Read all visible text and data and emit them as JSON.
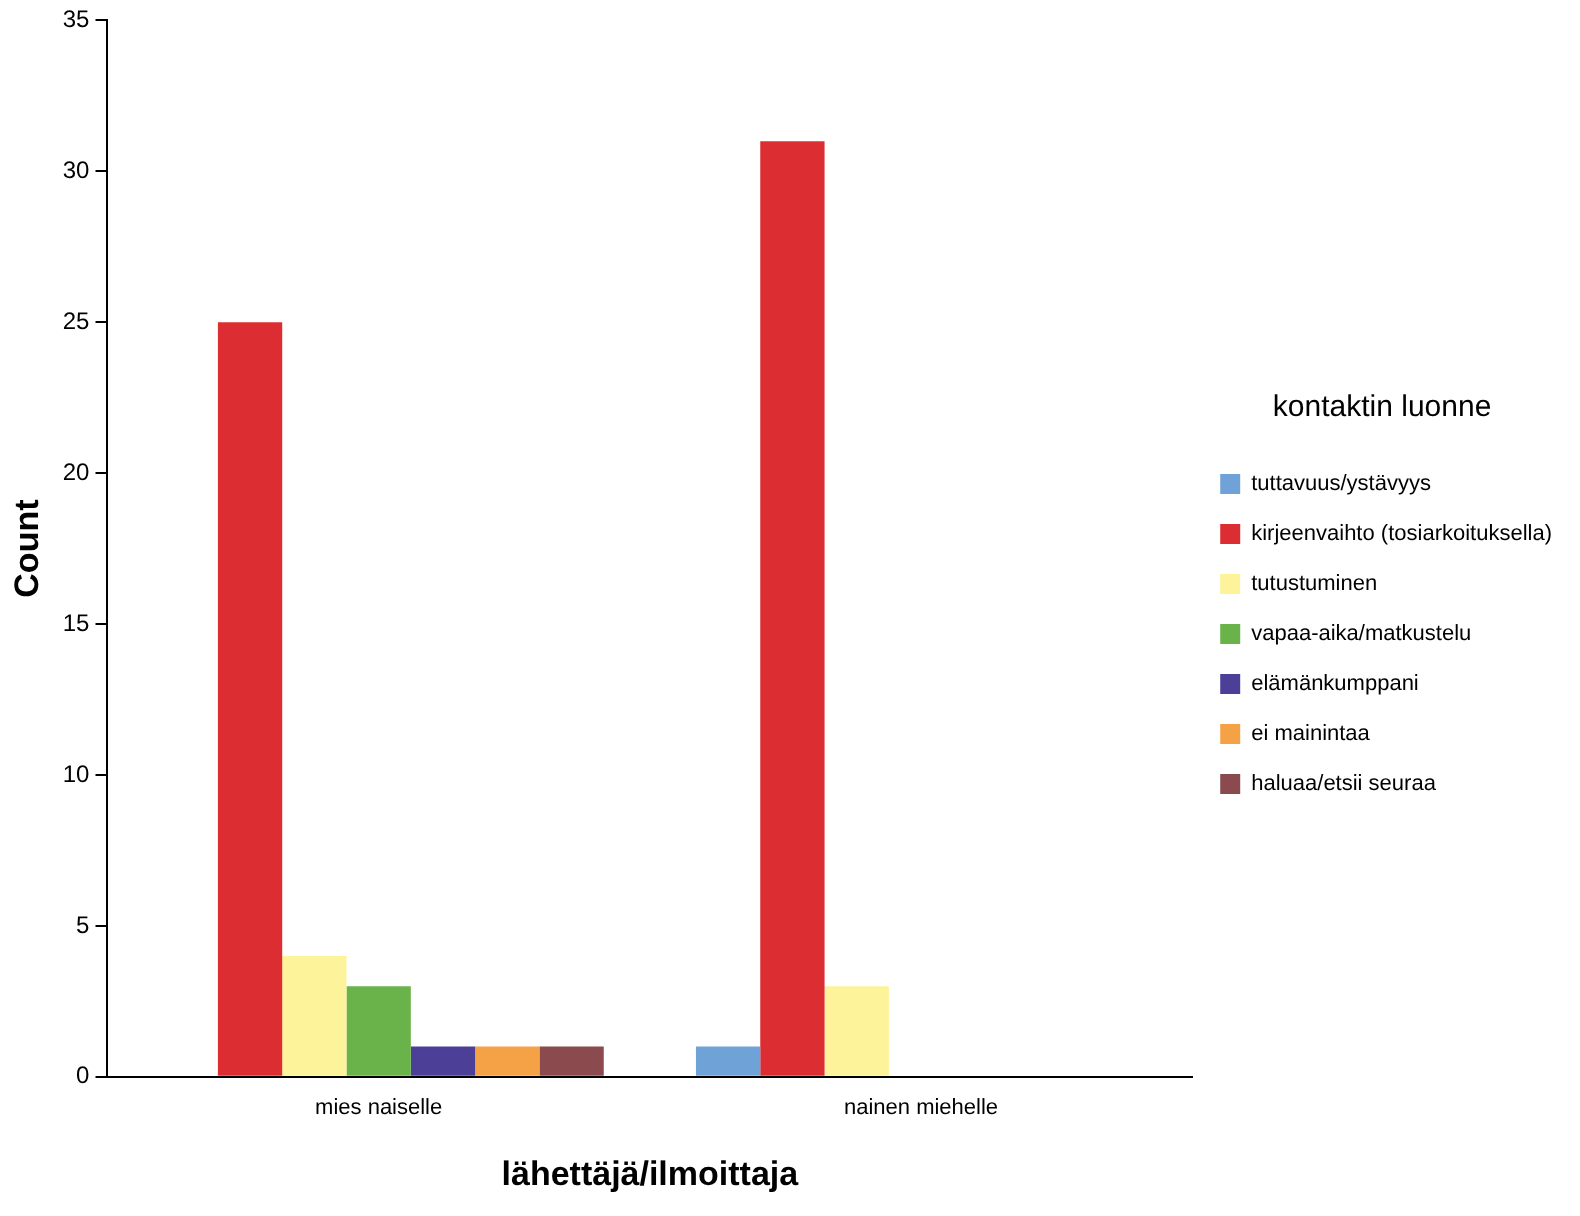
{
  "chart_data": {
    "type": "bar",
    "xlabel": "lähettäjä/ilmoittaja",
    "ylabel": "Count",
    "legend_title": "kontaktin luonne",
    "categories": [
      "mies naiselle",
      "nainen miehelle"
    ],
    "series": [
      {
        "name": "tuttavuus/ystävyys",
        "color": "#6fa3d8",
        "values": [
          0,
          1
        ]
      },
      {
        "name": "kirjeenvaihto (tosiarkoituksella)",
        "color": "#dc2e32",
        "values": [
          25,
          31
        ]
      },
      {
        "name": "tutustuminen",
        "color": "#fdf39a",
        "values": [
          4,
          3
        ]
      },
      {
        "name": "vapaa-aika/matkustelu",
        "color": "#6ab34a",
        "values": [
          3,
          0
        ]
      },
      {
        "name": "elämänkumppani",
        "color": "#4b3f98",
        "values": [
          1,
          0
        ]
      },
      {
        "name": "ei mainintaa",
        "color": "#f5a247",
        "values": [
          1,
          0
        ]
      },
      {
        "name": "haluaa/etsii seuraa",
        "color": "#8b4a4e",
        "values": [
          1,
          0
        ]
      }
    ],
    "ylim": [
      0,
      35
    ],
    "yticks": [
      0,
      5,
      10,
      15,
      20,
      25,
      30,
      35
    ],
    "grid": false,
    "legend": "right"
  }
}
